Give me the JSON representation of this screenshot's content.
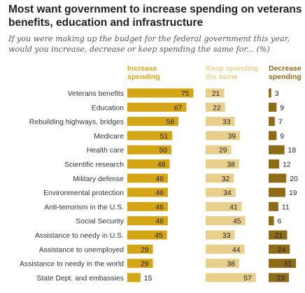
{
  "title": "Most want government to increase spending on veterans benefits, education and infrastructure",
  "subtitle": "If you were making up the budget for the federal government this year, would you increase, decrease or keep spending the same for... (%)",
  "colors": {
    "increase": "#d4a515",
    "same": "#e8cf8c",
    "decrease": "#8e6b17",
    "text": "#333333"
  },
  "chart_data": {
    "type": "bar",
    "categories": [
      "Veterans benefits",
      "Education",
      "Rebuilding highways, bridges",
      "Medicare",
      "Health care",
      "Scientific research",
      "Military defense",
      "Environmental protection",
      "Anti-terrorism in the U.S.",
      "Social Security",
      "Assistance to needy in U.S.",
      "Assistance to unemployed",
      "Assistance to needy in the world",
      "State Dept. and embassies"
    ],
    "series": [
      {
        "name": "Increase spending",
        "key": "increase",
        "values": [
          75,
          67,
          58,
          51,
          50,
          48,
          46,
          46,
          46,
          46,
          45,
          29,
          29,
          15
        ]
      },
      {
        "name": "Keep spending the same",
        "key": "same",
        "values": [
          21,
          22,
          33,
          39,
          29,
          38,
          32,
          34,
          41,
          45,
          33,
          44,
          38,
          57
        ]
      },
      {
        "name": "Decrease spending",
        "key": "decrease",
        "values": [
          3,
          9,
          7,
          9,
          18,
          12,
          20,
          19,
          11,
          6,
          21,
          24,
          31,
          23
        ]
      }
    ],
    "headers": {
      "increase": [
        "Increase",
        "spending"
      ],
      "same": [
        "Keep spending",
        "the same"
      ],
      "decrease": [
        "Decrease",
        "spending"
      ]
    }
  }
}
